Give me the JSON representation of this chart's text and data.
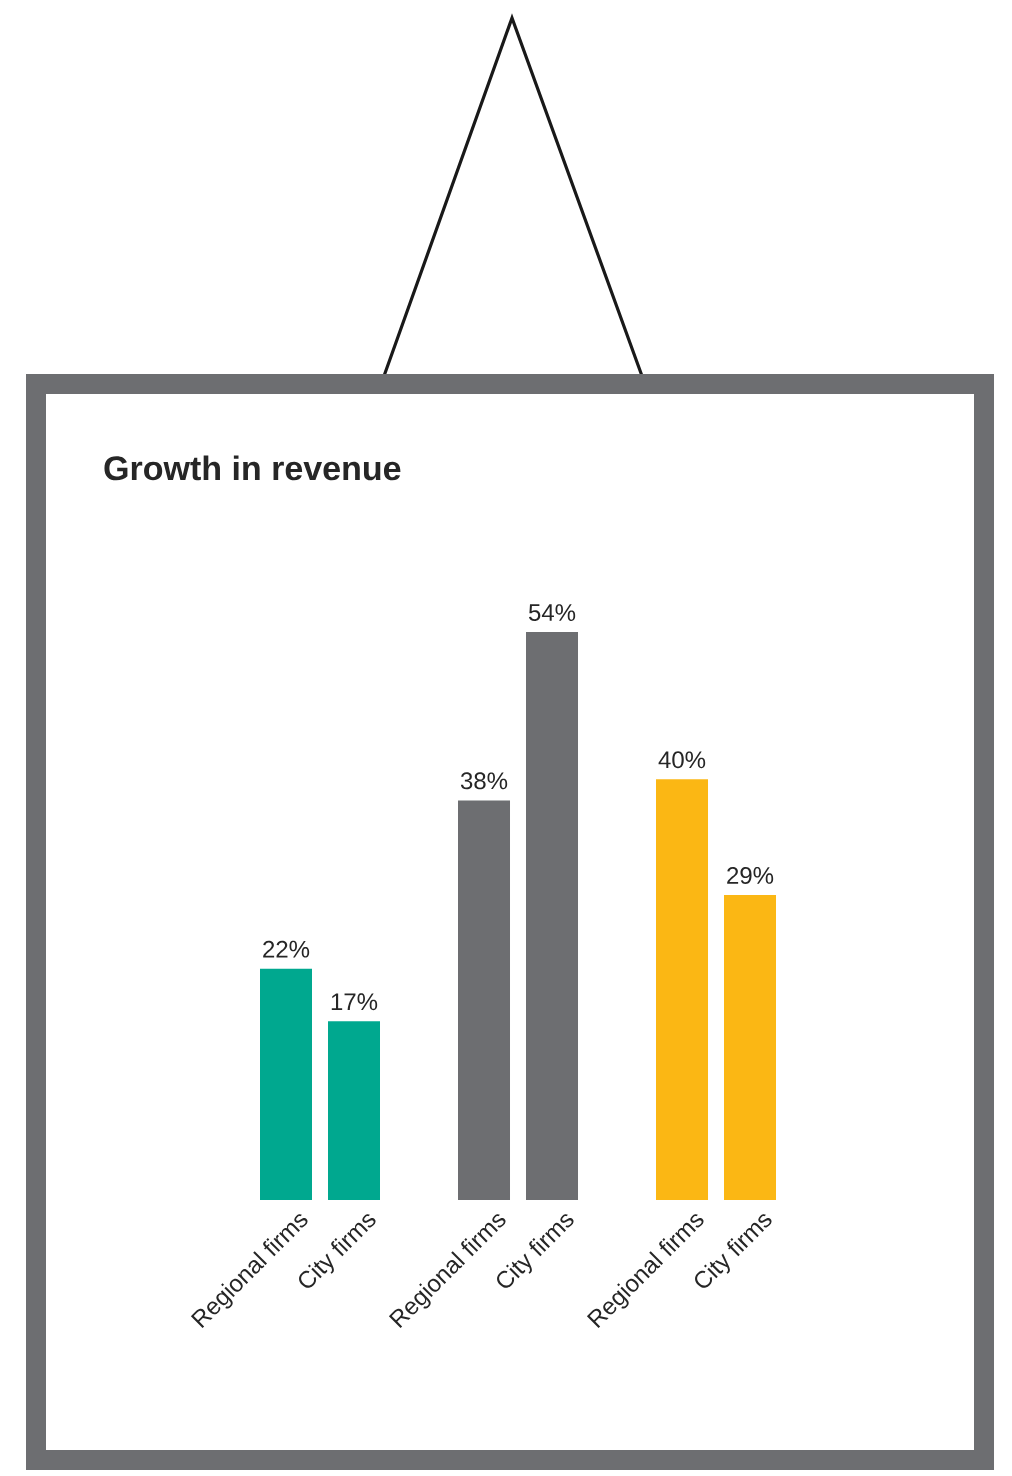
{
  "chart_data": {
    "type": "bar",
    "title": "Growth in revenue",
    "categories": [
      "Regional firms",
      "City firms",
      "Regional firms",
      "City firms",
      "Regional firms",
      "City firms"
    ],
    "values": [
      22,
      17,
      38,
      54,
      40,
      29
    ],
    "colors": [
      "#00a88f",
      "#00a88f",
      "#6d6e71",
      "#6d6e71",
      "#fbb714",
      "#fbb714"
    ],
    "value_labels": [
      "22%",
      "17%",
      "38%",
      "54%",
      "40%",
      "29%"
    ]
  }
}
